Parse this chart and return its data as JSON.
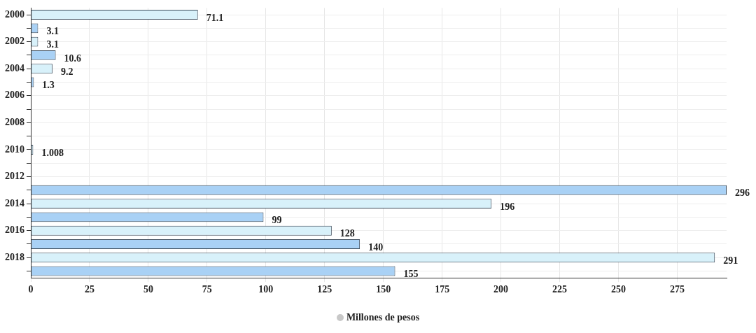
{
  "chart_data": {
    "type": "bar",
    "orientation": "horizontal",
    "categories": [
      "2000",
      null,
      "2002",
      null,
      "2004",
      null,
      "2006",
      null,
      "2008",
      null,
      "2010",
      null,
      "2012",
      null,
      "2014",
      null,
      "2016",
      null,
      "2018",
      null
    ],
    "series": [
      {
        "name": "Millones de pesos",
        "color": "#c8c8c8",
        "values": [
          71.1,
          3.1,
          3.1,
          10.6,
          9.2,
          1.3,
          null,
          null,
          null,
          null,
          1.008,
          null,
          null,
          296,
          196,
          99,
          128,
          140,
          291,
          155
        ],
        "colors": [
          "#d8f1fa",
          "#a9d1f5",
          "#d8f1fa",
          "#a9d1f5",
          "#d8f1fa",
          "#a9d1f5",
          "#d8f1fa",
          "#a9d1f5",
          "#d8f1fa",
          "#a9d1f5",
          "#d8f1fa",
          "#a9d1f5",
          "#d8f1fa",
          "#a9d1f5",
          "#d8f1fa",
          "#a9d1f5",
          "#d8f1fa",
          "#a9d1f5",
          "#d8f1fa",
          "#a9d1f5"
        ]
      }
    ],
    "xlim": [
      0,
      296
    ],
    "xticks": [
      0,
      25,
      50,
      75,
      100,
      125,
      150,
      175,
      200,
      225,
      250,
      275
    ],
    "grid": true,
    "legend": "bottom",
    "data_labels": true
  }
}
